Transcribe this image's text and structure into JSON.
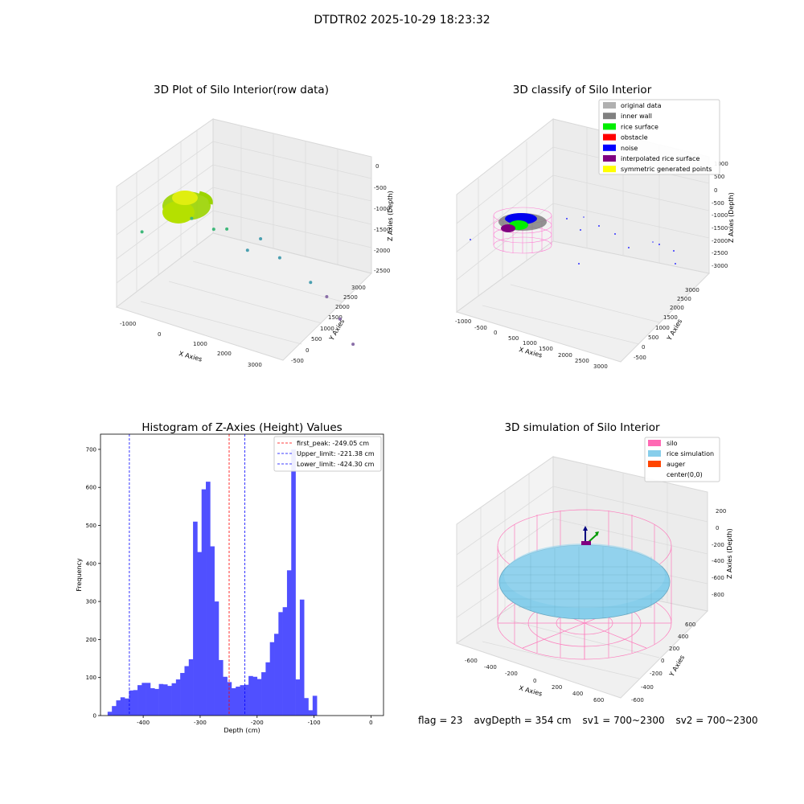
{
  "suptitle": "DTDTR02 2025-10-29 18:23:32",
  "footer": {
    "flag": "flag = 23",
    "avg_depth": "avgDepth = 354 cm",
    "sv1": "sv1 = 700~2300",
    "sv2": "sv2 = 700~2300"
  },
  "chart_data": [
    {
      "type": "scatter",
      "title": "3D Plot of Silo Interior(row data)",
      "xlabel": "X Axies",
      "ylabel": "Y Axies",
      "zlabel": "Z Axies (Depth)",
      "xticks": [
        "-1000",
        "0",
        "1000",
        "2000",
        "3000"
      ],
      "yticks": [
        "-500",
        "0",
        "500",
        "1000",
        "1500",
        "2000",
        "2500",
        "3000"
      ],
      "zticks": [
        "0",
        "-500",
        "-1000",
        "-1500",
        "-2000",
        "-2500"
      ],
      "points": [
        {
          "x": -1150,
          "y": 1800,
          "z": -1700
        },
        {
          "x": 300,
          "y": 2800,
          "z": -1300
        },
        {
          "x": 700,
          "y": 2500,
          "z": -1350
        },
        {
          "x": 900,
          "y": 2200,
          "z": -1250
        },
        {
          "x": 1300,
          "y": 2000,
          "z": -1500
        },
        {
          "x": 1500,
          "y": 1700,
          "z": -1200
        },
        {
          "x": 1800,
          "y": 1300,
          "z": -1400
        },
        {
          "x": 2400,
          "y": 1000,
          "z": -1650
        },
        {
          "x": 2700,
          "y": 800,
          "z": -1800
        },
        {
          "x": 2900,
          "y": 500,
          "z": -2100
        },
        {
          "x": 3100,
          "y": 200,
          "z": -2450
        }
      ]
    },
    {
      "type": "scatter",
      "title": "3D classify of Silo Interior",
      "xlabel": "X Axies",
      "ylabel": "Y Axies",
      "zlabel": "Z Axies (Depth)",
      "xticks": [
        "-1000",
        "-500",
        "0",
        "500",
        "1000",
        "1500",
        "2000",
        "2500",
        "3000"
      ],
      "yticks": [
        "-500",
        "0",
        "500",
        "1000",
        "1500",
        "2000",
        "2500",
        "3000"
      ],
      "zticks": [
        "0",
        "-500",
        "-1000",
        "-1500",
        "-2000",
        "-2500",
        "-3000"
      ],
      "legend": [
        {
          "label": "original data",
          "color": "#b0b0b0"
        },
        {
          "label": "inner wall",
          "color": "#808080"
        },
        {
          "label": "rice surface",
          "color": "#00ee00"
        },
        {
          "label": "obstacle",
          "color": "#ff0000"
        },
        {
          "label": "noise",
          "color": "#0000ff"
        },
        {
          "label": "interpolated rice surface",
          "color": "#800080"
        },
        {
          "label": "symmetric generated points",
          "color": "#ffff00"
        }
      ],
      "legend_position": "top-right"
    },
    {
      "type": "histogram",
      "title": "Histogram of Z-Axies (Height) Values",
      "xlabel": "Depth (cm)",
      "ylabel": "Frequency",
      "bar_color": "#5050ff",
      "bin_start": -462.5,
      "bin_width": 7.5,
      "values": [
        10,
        25,
        40,
        48,
        45,
        66,
        67,
        80,
        86,
        86,
        72,
        70,
        83,
        82,
        78,
        85,
        95,
        112,
        130,
        148,
        510,
        430,
        595,
        615,
        445,
        300,
        146,
        102,
        88,
        72,
        76,
        80,
        81,
        104,
        102,
        96,
        114,
        140,
        193,
        215,
        272,
        285,
        382,
        700,
        95,
        305,
        46,
        14,
        52
      ],
      "xlim": [
        -475,
        22
      ],
      "ylim": [
        0,
        740
      ],
      "xticks": [
        -400,
        -300,
        -200,
        -100,
        0
      ],
      "yticks": [
        0,
        100,
        200,
        300,
        400,
        500,
        600,
        700
      ],
      "vlines": [
        {
          "label": "first_peak: -249.05 cm",
          "value": -249.05,
          "color": "#ff0000"
        },
        {
          "label": "Upper_limit: -221.38 cm",
          "value": -221.38,
          "color": "#0000ff"
        },
        {
          "label": "Lower_limit: -424.30 cm",
          "value": -424.3,
          "color": "#0000ff"
        }
      ],
      "legend_position": "top-right"
    },
    {
      "type": "surface",
      "title": "3D simulation of Silo Interior",
      "xlabel": "X Axies",
      "ylabel": "Y Axies",
      "zlabel": "Z Axies (Depth)",
      "xticks": [
        "-600",
        "-400",
        "-200",
        "0",
        "200",
        "400",
        "600"
      ],
      "yticks": [
        "-600",
        "-400",
        "-200",
        "0",
        "200",
        "400",
        "600"
      ],
      "zticks": [
        "200",
        "0",
        "-200",
        "-400",
        "-600",
        "-800"
      ],
      "legend": [
        {
          "label": "silo",
          "color": "#ff69b4"
        },
        {
          "label": "rice simulation",
          "color": "#87ceeb"
        },
        {
          "label": "auger",
          "color": "#ff4500"
        },
        {
          "label": "center(0,0)",
          "color": "#ffffff"
        }
      ],
      "legend_position": "top-right"
    }
  ]
}
